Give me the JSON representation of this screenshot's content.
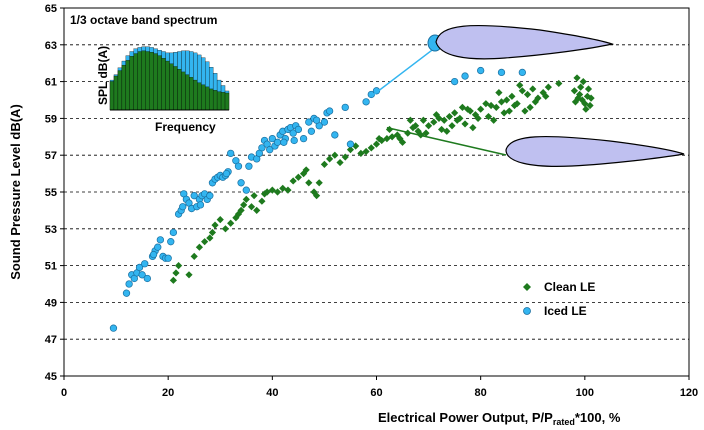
{
  "chart_data": {
    "type": "scatter",
    "xlabel": "Electrical Power Output, P/P",
    "xlabel_sub": "rated",
    "xlabel_suffix": "*100, %",
    "ylabel": "Sound Pressure Level dB(A)",
    "xlim": [
      0,
      120
    ],
    "ylim": [
      45,
      65
    ],
    "xticks": [
      "0",
      "20",
      "40",
      "60",
      "80",
      "100",
      "120"
    ],
    "yticks": [
      "45",
      "47",
      "49",
      "51",
      "53",
      "55",
      "57",
      "59",
      "61",
      "63",
      "65"
    ],
    "grid": "horizontal-dashed",
    "legend_position": "bottom-right",
    "series": [
      {
        "name": "Clean LE",
        "marker": "diamond",
        "color": "#1E7A1E",
        "points": [
          [
            21,
            50.2
          ],
          [
            21.5,
            50.6
          ],
          [
            22,
            51
          ],
          [
            24,
            50.5
          ],
          [
            25,
            51.5
          ],
          [
            26,
            52
          ],
          [
            27,
            52.3
          ],
          [
            28,
            52.5
          ],
          [
            28.5,
            52.8
          ],
          [
            29,
            53.2
          ],
          [
            30,
            53.5
          ],
          [
            31,
            53
          ],
          [
            32,
            53.3
          ],
          [
            33,
            53.6
          ],
          [
            33.5,
            53.8
          ],
          [
            34,
            54
          ],
          [
            34.5,
            54.3
          ],
          [
            35,
            54.6
          ],
          [
            36,
            54.2
          ],
          [
            36.5,
            54.8
          ],
          [
            37,
            54
          ],
          [
            38,
            54.5
          ],
          [
            38.5,
            54.9
          ],
          [
            39,
            55
          ],
          [
            40,
            55.1
          ],
          [
            41,
            55
          ],
          [
            42,
            55.2
          ],
          [
            43,
            55.1
          ],
          [
            44,
            55.6
          ],
          [
            45,
            55.8
          ],
          [
            46,
            56
          ],
          [
            46.5,
            56.2
          ],
          [
            47,
            55.5
          ],
          [
            48,
            55
          ],
          [
            48.5,
            54.8
          ],
          [
            49,
            55.5
          ],
          [
            50,
            56.5
          ],
          [
            51,
            56.8
          ],
          [
            52,
            57
          ],
          [
            53,
            56.6
          ],
          [
            54,
            56.9
          ],
          [
            55,
            57.3
          ],
          [
            56,
            57.5
          ],
          [
            57,
            57.1
          ],
          [
            58,
            57.2
          ],
          [
            59,
            57.4
          ],
          [
            60,
            57.6
          ],
          [
            61,
            57.8
          ],
          [
            62,
            57.9
          ],
          [
            63,
            58
          ],
          [
            64,
            58.1
          ],
          [
            65,
            57.7
          ],
          [
            66,
            58.2
          ],
          [
            67,
            58.5
          ],
          [
            68,
            58.3
          ],
          [
            69,
            58.9
          ],
          [
            70,
            58.6
          ],
          [
            71,
            58.8
          ],
          [
            72,
            59
          ],
          [
            73,
            58.9
          ],
          [
            74,
            59.1
          ],
          [
            75,
            59.3
          ],
          [
            76,
            59
          ],
          [
            77,
            58.7
          ],
          [
            78,
            59.4
          ],
          [
            79,
            59.2
          ],
          [
            80,
            59.5
          ],
          [
            81,
            59.8
          ],
          [
            82,
            59.7
          ],
          [
            83,
            59.6
          ],
          [
            84,
            59.9
          ],
          [
            85,
            60
          ],
          [
            86,
            60.2
          ],
          [
            87,
            59.8
          ],
          [
            88,
            60.5
          ],
          [
            89,
            60.3
          ],
          [
            90,
            60.6
          ],
          [
            91,
            60.1
          ],
          [
            92,
            60.4
          ],
          [
            93,
            60.7
          ],
          [
            95,
            60.9
          ],
          [
            98,
            60.5
          ],
          [
            98.5,
            61.2
          ],
          [
            99,
            60.3
          ],
          [
            99.5,
            60
          ],
          [
            100,
            59.8
          ],
          [
            100.5,
            60.2
          ],
          [
            101,
            59.7
          ],
          [
            98.2,
            59.9
          ],
          [
            99.2,
            60.7
          ],
          [
            100.2,
            59.5
          ],
          [
            101.2,
            60.1
          ],
          [
            99.7,
            61
          ],
          [
            100.7,
            60.6
          ],
          [
            98.7,
            60.1
          ],
          [
            66.5,
            58.9
          ],
          [
            68.5,
            58.1
          ],
          [
            72.5,
            58.4
          ],
          [
            74.5,
            58.6
          ],
          [
            76.5,
            59.6
          ],
          [
            78.5,
            58.5
          ],
          [
            81.5,
            59.1
          ],
          [
            83.5,
            60.4
          ],
          [
            85.5,
            59.4
          ],
          [
            87.5,
            60.8
          ],
          [
            89.5,
            59.6
          ],
          [
            60.5,
            57.9
          ],
          [
            62.5,
            58.4
          ],
          [
            64.5,
            57.9
          ],
          [
            67.5,
            58.6
          ],
          [
            69.5,
            58.2
          ],
          [
            71.5,
            59.2
          ],
          [
            73.5,
            58.3
          ],
          [
            75.5,
            58.9
          ],
          [
            77.5,
            59.5
          ],
          [
            79.5,
            59
          ],
          [
            82.5,
            58.9
          ],
          [
            84.5,
            59.3
          ],
          [
            86.5,
            59.7
          ],
          [
            88.5,
            59.4
          ],
          [
            90.5,
            59.9
          ],
          [
            92.5,
            60.2
          ]
        ]
      },
      {
        "name": "Iced LE",
        "marker": "circle",
        "color": "#33B5F0",
        "points": [
          [
            9.5,
            47.6
          ],
          [
            12,
            49.5
          ],
          [
            12.5,
            50
          ],
          [
            13,
            50.5
          ],
          [
            13.5,
            50.3
          ],
          [
            14,
            50.6
          ],
          [
            14.5,
            50.9
          ],
          [
            15,
            50.5
          ],
          [
            15.5,
            51.1
          ],
          [
            16,
            50.3
          ],
          [
            17,
            51.5
          ],
          [
            17.5,
            51.8
          ],
          [
            18,
            52
          ],
          [
            18.5,
            52.4
          ],
          [
            19,
            51.5
          ],
          [
            19.5,
            51.4
          ],
          [
            20,
            51.4
          ],
          [
            21,
            52.8
          ],
          [
            22,
            53.8
          ],
          [
            22.5,
            54
          ],
          [
            23,
            54.9
          ],
          [
            23.5,
            54.6
          ],
          [
            24,
            54.4
          ],
          [
            24.5,
            54.1
          ],
          [
            25,
            54.8
          ],
          [
            25.5,
            54.2
          ],
          [
            26,
            54.6
          ],
          [
            26.5,
            54.8
          ],
          [
            27,
            54.9
          ],
          [
            27.5,
            54.6
          ],
          [
            28,
            54.8
          ],
          [
            28.5,
            55.5
          ],
          [
            29,
            55.7
          ],
          [
            29.5,
            55.8
          ],
          [
            30,
            55.9
          ],
          [
            30.5,
            55.8
          ],
          [
            31,
            55.9
          ],
          [
            31.5,
            56.1
          ],
          [
            32,
            57.1
          ],
          [
            33,
            56.7
          ],
          [
            34,
            55.5
          ],
          [
            35,
            55.1
          ],
          [
            35.5,
            56.4
          ],
          [
            36,
            56.9
          ],
          [
            37,
            56.8
          ],
          [
            38,
            57.4
          ],
          [
            38.5,
            57.8
          ],
          [
            39,
            57.6
          ],
          [
            39.5,
            57.3
          ],
          [
            40,
            57.9
          ],
          [
            40.5,
            57.5
          ],
          [
            41,
            57.7
          ],
          [
            41.5,
            58.1
          ],
          [
            42,
            58.3
          ],
          [
            42.5,
            57.9
          ],
          [
            43,
            58.4
          ],
          [
            43.5,
            58.5
          ],
          [
            44,
            58.2
          ],
          [
            44.5,
            58.6
          ],
          [
            45,
            58.4
          ],
          [
            46,
            57.9
          ],
          [
            47,
            58.8
          ],
          [
            47.5,
            58.3
          ],
          [
            48,
            59
          ],
          [
            49,
            58.6
          ],
          [
            50,
            58.8
          ],
          [
            50.5,
            59.3
          ],
          [
            51,
            59.4
          ],
          [
            52,
            58.1
          ],
          [
            54,
            59.6
          ],
          [
            55,
            57.6
          ],
          [
            58,
            59.9
          ],
          [
            59,
            60.3
          ],
          [
            60,
            60.5
          ],
          [
            75,
            61
          ],
          [
            77,
            61.3
          ],
          [
            80,
            61.6
          ],
          [
            84,
            61.5
          ],
          [
            88,
            61.5
          ],
          [
            26.2,
            54.3
          ],
          [
            31.2,
            56
          ],
          [
            33.5,
            56.4
          ],
          [
            37.5,
            57.1
          ],
          [
            42.2,
            57.7
          ],
          [
            44.2,
            57.8
          ],
          [
            48.5,
            58.9
          ],
          [
            17.2,
            51.6
          ],
          [
            20.5,
            52.3
          ],
          [
            22.8,
            54.2
          ]
        ]
      }
    ],
    "inset": {
      "type": "bar",
      "title": "1/3 octave band spectrum",
      "ylabel": "SPL dB(A)",
      "xlabel": "Frequency",
      "series": [
        {
          "name": "Iced LE",
          "color": "#33B5F0",
          "values": [
            44,
            52,
            62,
            72,
            80,
            86,
            90,
            92,
            93,
            93,
            92,
            90,
            88,
            86,
            84,
            84,
            85,
            86,
            87,
            87,
            86,
            84,
            81,
            77,
            71,
            63,
            54,
            44,
            36,
            28
          ]
        },
        {
          "name": "Clean LE",
          "color": "#1E7A1E",
          "values": [
            42,
            50,
            58,
            66,
            73,
            79,
            83,
            86,
            87,
            86,
            85,
            83,
            80,
            76,
            72,
            68,
            64,
            60,
            56,
            52,
            48,
            44,
            40,
            37,
            34,
            31,
            29,
            27,
            26,
            25
          ]
        }
      ]
    },
    "annotations": [
      {
        "label": "iced airfoil",
        "color": "#33B5F0",
        "points_at": [
          72,
          63
        ]
      },
      {
        "label": "clean airfoil",
        "color": "#1E7A1E",
        "points_at": [
          62,
          58.5
        ]
      }
    ],
    "colors": {
      "clean": "#1E7A1E",
      "iced": "#33B5F0",
      "airfoil_fill": "#BFC0F0",
      "grid": "#000000"
    }
  }
}
